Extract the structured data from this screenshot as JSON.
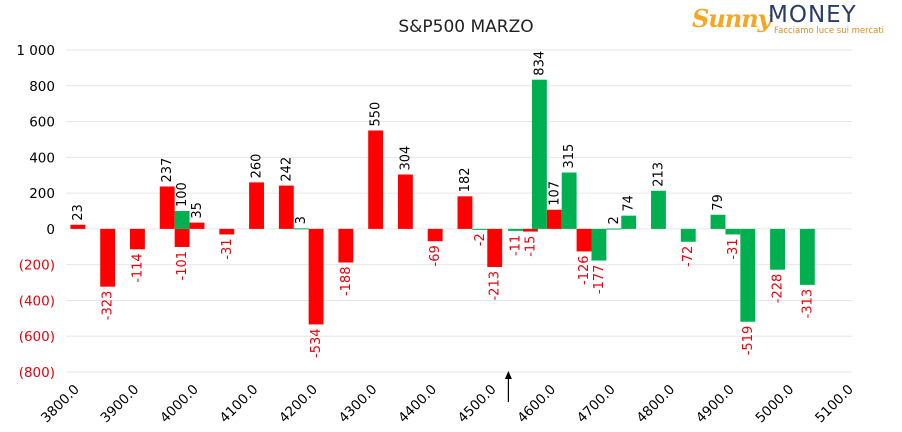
{
  "logo": {
    "brand_part1": "Sunny",
    "brand_part2": "MONEY",
    "tagline": "Facciamo luce sui mercati"
  },
  "colors": {
    "red": "#ff0000",
    "green": "#00b050",
    "positive_label": "#000000",
    "negative_label": "#e8000b"
  },
  "chart_data": {
    "type": "bar",
    "title": "S&P500 MARZO",
    "xlabel": "",
    "ylabel": "",
    "ylim": [
      -800,
      1000
    ],
    "yticks": [
      1000,
      800,
      600,
      400,
      200,
      0,
      -200,
      -400,
      -600,
      -800
    ],
    "ytick_labels": [
      "1 000",
      "800",
      "600",
      "400",
      "200",
      "0",
      "(200)",
      "(400)",
      "(600)",
      "(800)"
    ],
    "grid": true,
    "legend": "none",
    "x_tick_labels": [
      "3800.0",
      "3900.0",
      "4000.0",
      "4100.0",
      "4200.0",
      "4300.0",
      "4400.0",
      "4500.0",
      "4600.0",
      "4700.0",
      "4800.0",
      "4900.0",
      "5000.0",
      "5100.0"
    ],
    "x_ticks": [
      3800,
      3900,
      4000,
      4100,
      4200,
      4300,
      4400,
      4500,
      4600,
      4700,
      4800,
      4900,
      5000,
      5100
    ],
    "bar_width_strikes": 25,
    "series": [
      {
        "color": "red",
        "points": [
          {
            "x": 3800,
            "y": 23
          },
          {
            "x": 3850,
            "y": -323
          },
          {
            "x": 3900,
            "y": -114
          },
          {
            "x": 3950,
            "y": 237
          },
          {
            "x": 3975,
            "y": -101
          },
          {
            "x": 4000,
            "y": 35
          },
          {
            "x": 4050,
            "y": -31
          },
          {
            "x": 4100,
            "y": 260
          },
          {
            "x": 4150,
            "y": 242
          },
          {
            "x": 4200,
            "y": -534
          },
          {
            "x": 4250,
            "y": -188
          },
          {
            "x": 4300,
            "y": 550
          },
          {
            "x": 4350,
            "y": 304
          },
          {
            "x": 4400,
            "y": -69
          },
          {
            "x": 4450,
            "y": 182
          },
          {
            "x": 4500,
            "y": -213
          },
          {
            "x": 4560,
            "y": -15
          },
          {
            "x": 4600,
            "y": 107
          },
          {
            "x": 4650,
            "y": -126
          }
        ]
      },
      {
        "color": "green",
        "points": [
          {
            "x": 3975,
            "y": 100
          },
          {
            "x": 4175,
            "y": 3
          },
          {
            "x": 4475,
            "y": -2
          },
          {
            "x": 4535,
            "y": -11
          },
          {
            "x": 4575,
            "y": 834
          },
          {
            "x": 4625,
            "y": 315
          },
          {
            "x": 4675,
            "y": -177
          },
          {
            "x": 4700,
            "y": 2
          },
          {
            "x": 4725,
            "y": 74
          },
          {
            "x": 4775,
            "y": 213
          },
          {
            "x": 4825,
            "y": -72
          },
          {
            "x": 4875,
            "y": 79
          },
          {
            "x": 4900,
            "y": -31
          },
          {
            "x": 4925,
            "y": -519
          },
          {
            "x": 4975,
            "y": -228
          },
          {
            "x": 5025,
            "y": -313
          }
        ]
      }
    ],
    "annotation": {
      "type": "arrow",
      "x": 4575
    }
  }
}
